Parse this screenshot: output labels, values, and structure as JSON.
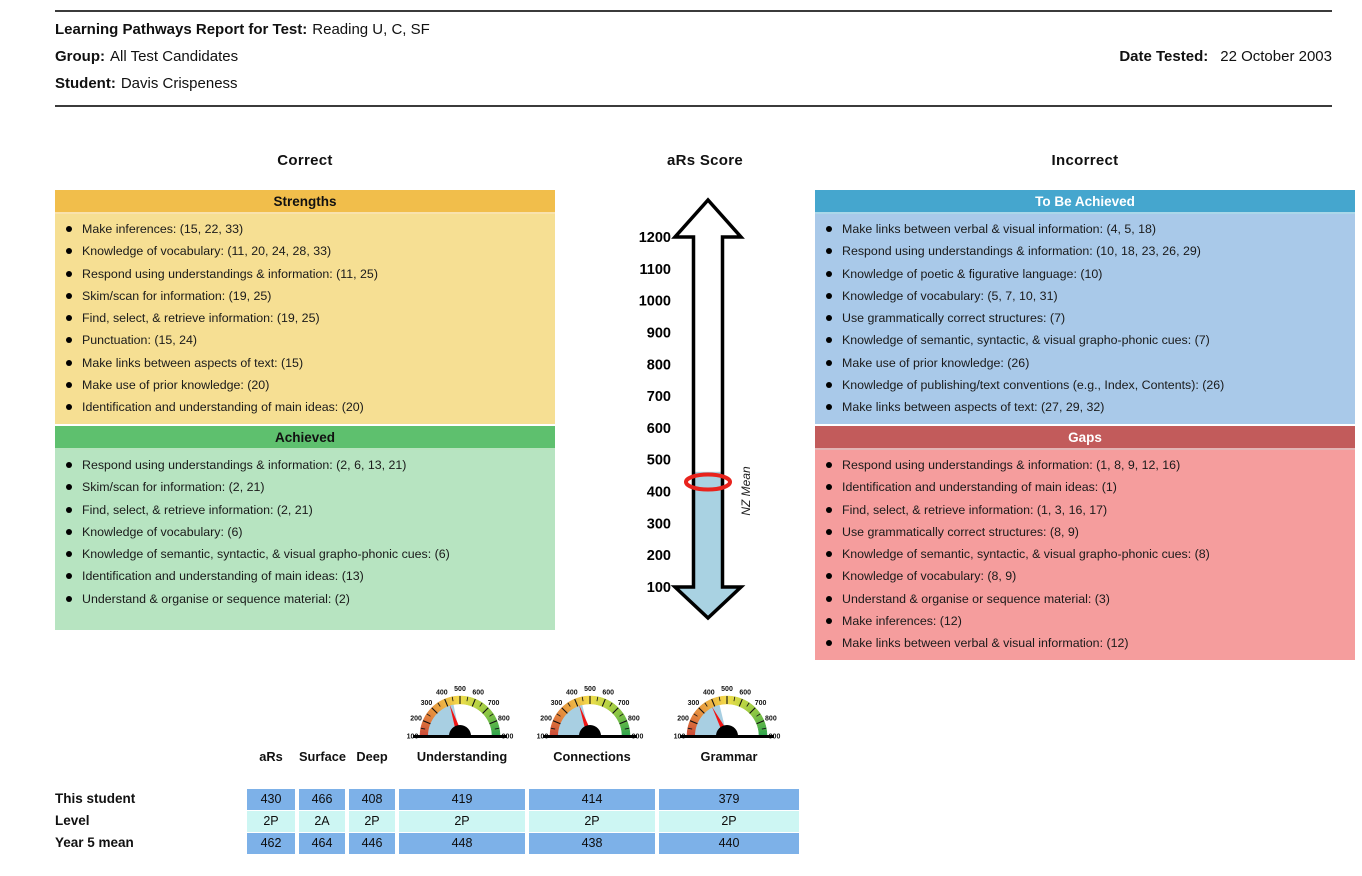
{
  "header": {
    "report_label": "Learning Pathways Report for Test:",
    "report_value": "Reading U, C, SF",
    "group_label": "Group:",
    "group_value": "All Test Candidates",
    "student_label": "Student:",
    "student_value": "Davis Crispeness",
    "date_label": "Date Tested:",
    "date_value": "22 October 2003"
  },
  "columns": {
    "correct_title": "Correct",
    "center_title": "aRs Score",
    "incorrect_title": "Incorrect"
  },
  "boxes": {
    "strengths": {
      "title": "Strengths",
      "header_color": "#f1be4b",
      "body_color": "#f6df93",
      "items": [
        "Make inferences: (15, 22, 33)",
        "Knowledge of vocabulary: (11, 20, 24, 28, 33)",
        "Respond using understandings & information: (11, 25)",
        "Skim/scan for information: (19, 25)",
        "Find, select, & retrieve information: (19, 25)",
        "Punctuation: (15, 24)",
        "Make links between aspects of text: (15)",
        "Make use of prior knowledge: (20)",
        "Identification and understanding of main ideas: (20)"
      ]
    },
    "achieved": {
      "title": "Achieved",
      "header_color": "#5ec06e",
      "body_color": "#b7e4c1",
      "items": [
        "Respond using understandings & information: (2, 6, 13, 21)",
        "Skim/scan for information: (2, 21)",
        "Find, select, & retrieve information: (2, 21)",
        "Knowledge of vocabulary: (6)",
        "Knowledge of semantic, syntactic, & visual grapho-phonic cues: (6)",
        "Identification and understanding of main ideas: (13)",
        "Understand & organise or sequence material: (2)"
      ]
    },
    "to_be_achieved": {
      "title": "To Be Achieved",
      "header_color": "#45a6ce",
      "body_color": "#a9c9e9",
      "items": [
        "Make links between verbal & visual information: (4, 5, 18)",
        "Respond using understandings & information: (10, 18, 23, 26, 29)",
        "Knowledge of poetic & figurative language: (10)",
        "Knowledge of vocabulary: (5, 7, 10, 31)",
        "Use grammatically correct structures: (7)",
        "Knowledge of semantic, syntactic, & visual grapho-phonic cues: (7)",
        "Make use of prior knowledge: (26)",
        "Knowledge of publishing/text conventions (e.g., Index, Contents): (26)",
        "Make links between aspects of text: (27, 29, 32)"
      ]
    },
    "gaps": {
      "title": "Gaps",
      "header_color": "#c25b5b",
      "body_color": "#f59d9d",
      "items": [
        "Respond using understandings & information: (1, 8, 9, 12, 16)",
        "Identification and understanding of main ideas: (1)",
        "Find, select, & retrieve information: (1, 3, 16, 17)",
        "Use grammatically correct structures: (8, 9)",
        "Knowledge of semantic, syntactic, & visual grapho-phonic cues: (8)",
        "Knowledge of vocabulary: (8, 9)",
        "Understand & organise or sequence material: (3)",
        "Make inferences: (12)",
        "Make links between verbal & visual information: (12)"
      ]
    }
  },
  "chart_data": [
    {
      "type": "scale-arrow",
      "title": "aRs Score",
      "min": 100,
      "max": 1200,
      "axis_ticks": [
        1200,
        1100,
        1000,
        900,
        800,
        700,
        600,
        500,
        400,
        300,
        200,
        100
      ],
      "student_score": 430,
      "mean_score": 462,
      "mean_label": "NZ Mean",
      "fill_color": "#a9d2e2",
      "marker_color": "#e8231d"
    },
    {
      "type": "gauge",
      "label": "Understanding",
      "min": 100,
      "max": 900,
      "tick_step": 100,
      "student": 419,
      "mean": 448,
      "fill_color": "#a8cfe2",
      "needle_color": "#f01515"
    },
    {
      "type": "gauge",
      "label": "Connections",
      "min": 100,
      "max": 900,
      "tick_step": 100,
      "student": 414,
      "mean": 438,
      "fill_color": "#a8cfe2",
      "needle_color": "#f01515"
    },
    {
      "type": "gauge",
      "label": "Grammar",
      "min": 100,
      "max": 900,
      "tick_step": 100,
      "student": 379,
      "mean": 440,
      "fill_color": "#a8cfe2",
      "needle_color": "#f01515"
    }
  ],
  "score_table": {
    "col_headers": [
      "aRs",
      "Surface",
      "Deep",
      "Understanding",
      "Connections",
      "Grammar"
    ],
    "rows": [
      {
        "label": "This student",
        "values": [
          "430",
          "466",
          "408",
          "419",
          "414",
          "379"
        ],
        "bg": "#7db1e8"
      },
      {
        "label": "Level",
        "values": [
          "2P",
          "2A",
          "2P",
          "2P",
          "2P",
          "2P"
        ],
        "bg": "#cdf6f3"
      },
      {
        "label": "Year 5 mean",
        "values": [
          "462",
          "464",
          "446",
          "448",
          "438",
          "440"
        ],
        "bg": "#7db1e8"
      }
    ]
  },
  "colors": {
    "score_row_blue": "#7db1e8",
    "level_row_cyan": "#cdf6f3",
    "arrow_fill_blue": "#a9d2e2",
    "student_marker_red": "#e8231d"
  }
}
